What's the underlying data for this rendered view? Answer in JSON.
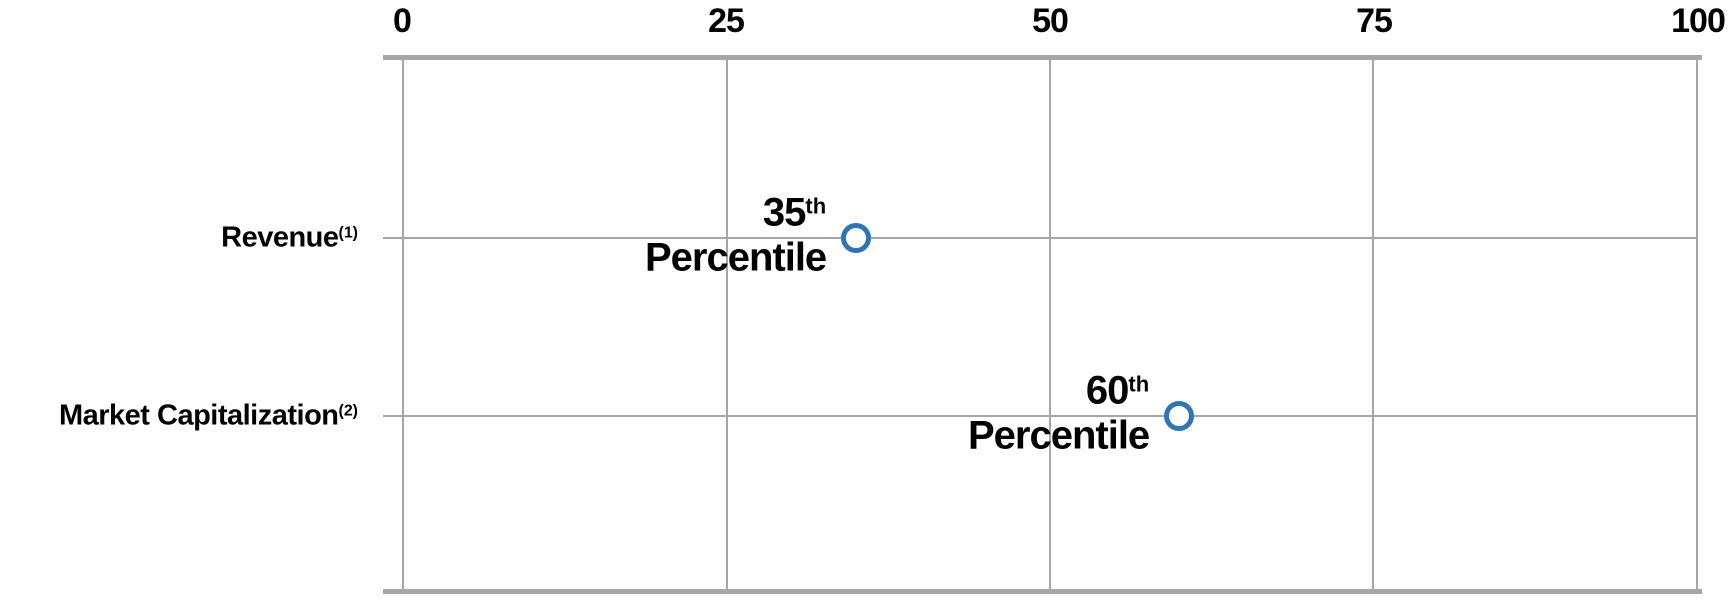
{
  "chart_data": {
    "type": "scatter",
    "subtype": "horizontal-dot-plot",
    "title": "",
    "categories": [
      "Revenue",
      "Market Capitalization"
    ],
    "category_footnotes": [
      "(1)",
      "(2)"
    ],
    "values": [
      35,
      60
    ],
    "point_labels_full": [
      "35th Percentile",
      "60th Percentile"
    ],
    "point_label_parts": [
      {
        "number": "35",
        "suffix": "th",
        "word": "Percentile"
      },
      {
        "number": "60",
        "suffix": "th",
        "word": "Percentile"
      }
    ],
    "x_ticks": [
      "0",
      "25",
      "50",
      "75",
      "100"
    ],
    "xlim": [
      0,
      100
    ],
    "x_axis_position": "top",
    "grid": "vertical gridlines at 25, 50, 75; horizontal line per category row",
    "legend": "none",
    "marker_style": "open circle",
    "colors": {
      "marker_stroke": "#2e75b6",
      "marker_fill": "#ffffff",
      "gridline": "#a6a6a6",
      "axis_line": "#a6a6a6",
      "text": "#000000",
      "background": "#ffffff"
    }
  }
}
